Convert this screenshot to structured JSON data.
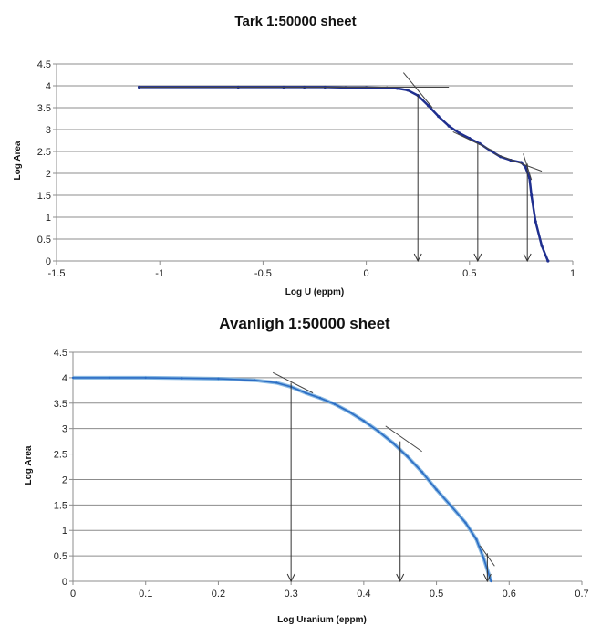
{
  "chart_data": [
    {
      "type": "scatter",
      "title": "Tark 1:50000 sheet",
      "xlabel": "Log U (eppm)",
      "ylabel": "Log Area",
      "xlim": [
        -1.5,
        1
      ],
      "ylim": [
        0,
        4.5
      ],
      "xticks": [
        -1.5,
        -1,
        -0.5,
        0,
        0.5,
        1
      ],
      "xtick_labels": [
        "-1.5",
        "-1",
        "-0.5",
        "0",
        "0.5",
        "1"
      ],
      "yticks": [
        0,
        0.5,
        1,
        1.5,
        2,
        2.5,
        3,
        3.5,
        4,
        4.5
      ],
      "ytick_labels": [
        "0",
        "0.5",
        "1",
        "1.5",
        "2",
        "2.5",
        "3",
        "3.5",
        "4",
        "4.5"
      ],
      "grid": "horizontal",
      "series_color": "#1f2f8f",
      "x": [
        -1.1,
        -0.62,
        -0.4,
        -0.3,
        -0.2,
        -0.1,
        0.0,
        0.1,
        0.15,
        0.2,
        0.25,
        0.3,
        0.35,
        0.4,
        0.45,
        0.5,
        0.55,
        0.6,
        0.65,
        0.7,
        0.75,
        0.77,
        0.79,
        0.8,
        0.82,
        0.85,
        0.88
      ],
      "y": [
        3.97,
        3.97,
        3.97,
        3.97,
        3.97,
        3.96,
        3.96,
        3.95,
        3.94,
        3.9,
        3.78,
        3.55,
        3.3,
        3.08,
        2.92,
        2.8,
        2.68,
        2.52,
        2.38,
        2.3,
        2.25,
        2.15,
        1.9,
        1.5,
        0.9,
        0.35,
        0.0
      ],
      "tangents": [
        {
          "x": [
            -1.1,
            0.4
          ],
          "y": [
            3.97,
            3.97
          ]
        },
        {
          "x": [
            0.18,
            0.32
          ],
          "y": [
            4.3,
            3.5
          ]
        },
        {
          "x": [
            0.42,
            0.62
          ],
          "y": [
            2.95,
            2.5
          ]
        },
        {
          "x": [
            0.62,
            0.85
          ],
          "y": [
            2.45,
            2.05
          ]
        },
        {
          "x": [
            0.76,
            0.8
          ],
          "y": [
            2.45,
            1.85
          ]
        }
      ],
      "thresholds": [
        {
          "x": 0.25,
          "y": 3.8
        },
        {
          "x": 0.54,
          "y": 2.68
        },
        {
          "x": 0.78,
          "y": 2.22
        }
      ]
    },
    {
      "type": "line",
      "title": "Avanligh 1:50000 sheet",
      "xlabel": "Log Uranium (eppm)",
      "ylabel": "Log Area",
      "xlim": [
        0,
        0.7
      ],
      "ylim": [
        0,
        4.5
      ],
      "xticks": [
        0,
        0.1,
        0.2,
        0.3,
        0.4,
        0.5,
        0.6,
        0.7
      ],
      "xtick_labels": [
        "0",
        "0.1",
        "0.2",
        "0.3",
        "0.4",
        "0.5",
        "0.6",
        "0.7"
      ],
      "yticks": [
        0,
        0.5,
        1,
        1.5,
        2,
        2.5,
        3,
        3.5,
        4,
        4.5
      ],
      "ytick_labels": [
        "0",
        "0.5",
        "1",
        "1.5",
        "2",
        "2.5",
        "3",
        "3.5",
        "4",
        "4.5"
      ],
      "grid": "horizontal",
      "series_colors": [
        "#2b6cc4",
        "#6aa7dc"
      ],
      "x": [
        0,
        0.05,
        0.1,
        0.15,
        0.2,
        0.25,
        0.28,
        0.3,
        0.32,
        0.34,
        0.36,
        0.38,
        0.4,
        0.42,
        0.44,
        0.46,
        0.48,
        0.5,
        0.52,
        0.54,
        0.555,
        0.565,
        0.575
      ],
      "y": [
        4.0,
        4.0,
        4.0,
        3.99,
        3.98,
        3.95,
        3.9,
        3.82,
        3.7,
        3.6,
        3.48,
        3.33,
        3.15,
        2.95,
        2.72,
        2.45,
        2.15,
        1.8,
        1.48,
        1.15,
        0.82,
        0.45,
        0.0
      ],
      "tangents": [
        {
          "x": [
            0.275,
            0.33
          ],
          "y": [
            4.1,
            3.7
          ]
        },
        {
          "x": [
            0.43,
            0.48
          ],
          "y": [
            3.05,
            2.55
          ]
        },
        {
          "x": [
            0.56,
            0.58
          ],
          "y": [
            0.7,
            0.3
          ]
        }
      ],
      "thresholds": [
        {
          "x": 0.3,
          "y": 3.9
        },
        {
          "x": 0.45,
          "y": 2.75
        },
        {
          "x": 0.57,
          "y": 0.55
        }
      ]
    }
  ]
}
